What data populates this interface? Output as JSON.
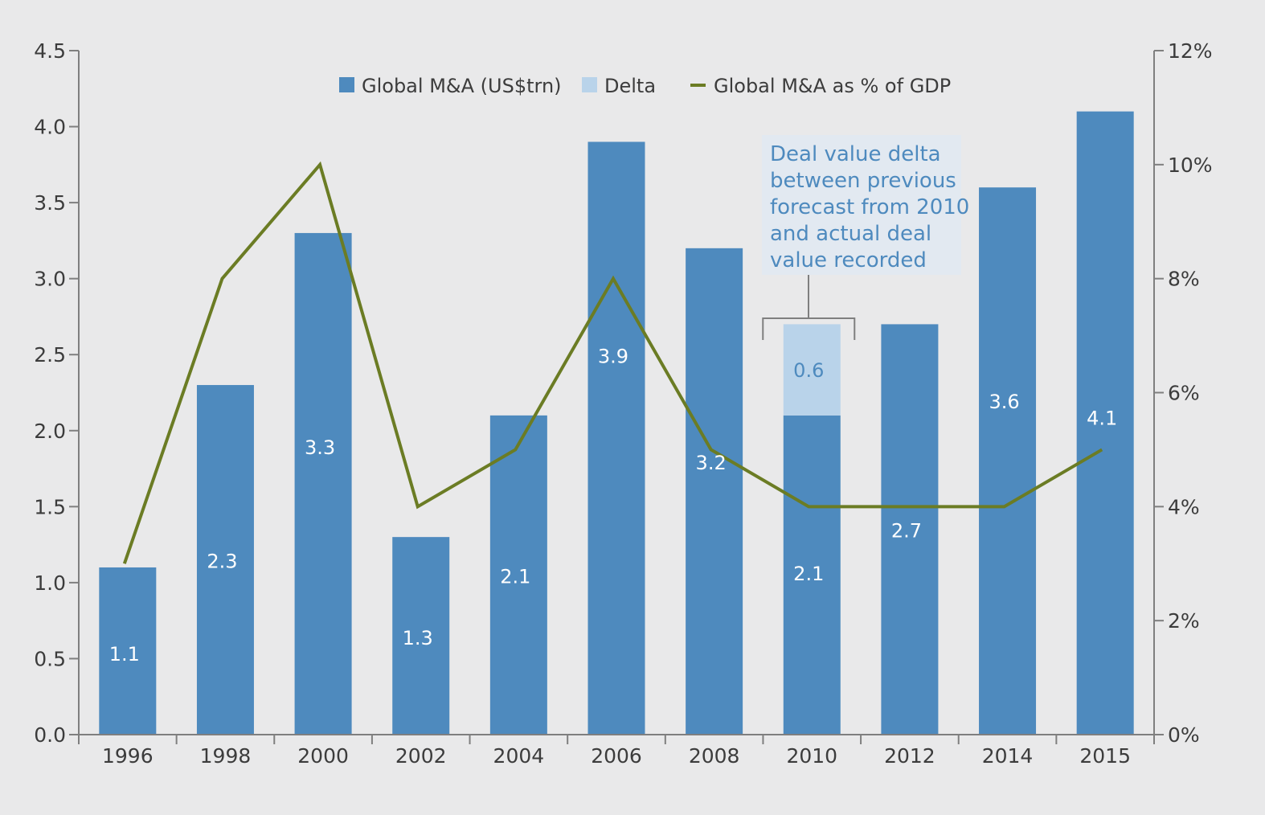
{
  "chart_data": {
    "type": "bar",
    "categories": [
      "1996",
      "1998",
      "2000",
      "2002",
      "2004",
      "2006",
      "2008",
      "2010",
      "2012",
      "2014",
      "2015"
    ],
    "series": [
      {
        "name": "Global M&A (US$trn)",
        "type": "bar",
        "axis": "left",
        "color": "#4e8abe",
        "values": [
          1.1,
          2.3,
          3.3,
          1.3,
          2.1,
          3.9,
          3.2,
          2.1,
          2.7,
          3.6,
          4.1
        ],
        "labels": [
          "1.1",
          "2.3",
          "3.3",
          "1.3",
          "2.1",
          "3.9",
          "3.2",
          "2.1",
          "2.7",
          "3.6",
          "4.1"
        ]
      },
      {
        "name": "Delta",
        "type": "bar-stacked",
        "axis": "left",
        "color": "#b9d3ea",
        "values": [
          null,
          null,
          null,
          null,
          null,
          null,
          null,
          0.6,
          null,
          null,
          null
        ],
        "labels": [
          null,
          null,
          null,
          null,
          null,
          null,
          null,
          "0.6",
          null,
          null,
          null
        ]
      },
      {
        "name": "Global M&A as % of GDP",
        "type": "line",
        "axis": "right",
        "color": "#6b7c24",
        "values": [
          3,
          8,
          10,
          4,
          5,
          8,
          5,
          4,
          4,
          4,
          5
        ]
      }
    ],
    "left_axis": {
      "ylim": [
        0,
        4.5
      ],
      "ticks": [
        0,
        0.5,
        1,
        1.5,
        2,
        2.5,
        3,
        3.5,
        4,
        4.5
      ],
      "tick_labels": [
        "0.0",
        "0.5",
        "1.0",
        "1.5",
        "2.0",
        "2.5",
        "3.0",
        "3.5",
        "4.0",
        "4.5"
      ]
    },
    "right_axis": {
      "ylim": [
        0,
        12
      ],
      "ticks": [
        0,
        2,
        4,
        6,
        8,
        10,
        12
      ],
      "tick_labels": [
        "0%",
        "2%",
        "4%",
        "6%",
        "8%",
        "10%",
        "12%"
      ]
    },
    "legend": {
      "position": "top-center",
      "items": [
        {
          "label": "Global M&A (US$trn)",
          "marker": "square",
          "color": "#4e8abe"
        },
        {
          "label": "Delta",
          "marker": "square",
          "color": "#b9d3ea"
        },
        {
          "label": "Global M&A as % of GDP",
          "marker": "line",
          "color": "#6b7c24"
        }
      ]
    },
    "annotation": {
      "lines": [
        "Deal value delta",
        "between previous",
        "forecast from 2010",
        "and actual deal",
        "value recorded"
      ],
      "target_category": "2010"
    },
    "grid": false
  }
}
